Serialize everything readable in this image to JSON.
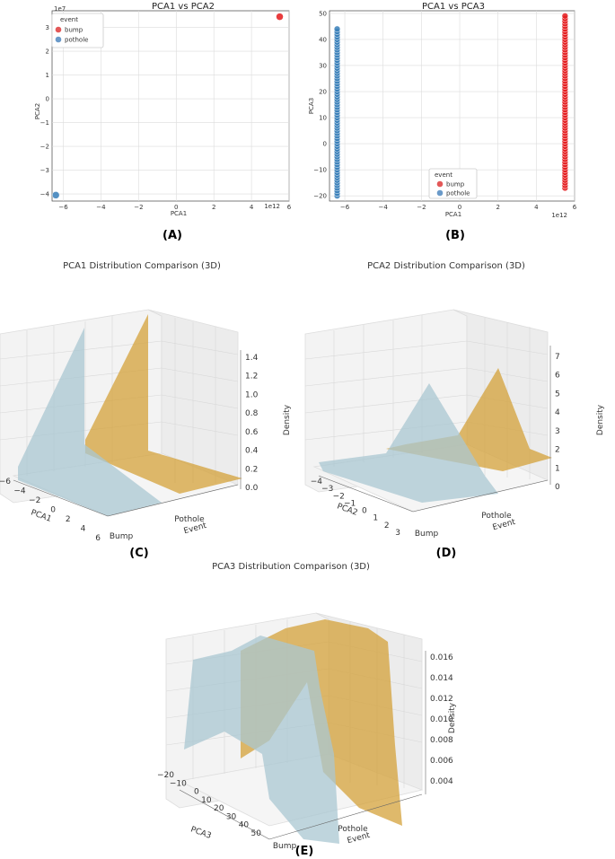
{
  "panels": {
    "A": "(A)",
    "B": "(B)",
    "C": "(C)",
    "D": "(D)",
    "E": "(E)"
  },
  "colors": {
    "bump": "#e41a1c",
    "pothole": "#377eb8",
    "bump3d": "#d4a23a",
    "pothole3d": "#a9c7d2"
  },
  "chart_data": [
    {
      "type": "scatter",
      "title": "PCA1 vs PCA2",
      "xlabel": "PCA1",
      "ylabel": "PCA2",
      "x_exponent": "1e12",
      "y_exponent": "1e7",
      "xlim": [
        -6.6,
        6.0
      ],
      "ylim": [
        -4.3,
        3.7
      ],
      "xticks": [
        "−6",
        "−4",
        "−2",
        "0",
        "2",
        "4",
        "6"
      ],
      "xtick_vals": [
        -6,
        -4,
        -2,
        0,
        2,
        4,
        6
      ],
      "yticks": [
        "−4",
        "−3",
        "−2",
        "−1",
        "0",
        "1",
        "2",
        "3"
      ],
      "ytick_vals": [
        -4,
        -3,
        -2,
        -1,
        0,
        1,
        2,
        3
      ],
      "grid": true,
      "legend": {
        "title": "event",
        "placement": "top-left",
        "entries": [
          "bump",
          "pothole"
        ]
      },
      "series": [
        {
          "name": "bump",
          "points": [
            [
              5.5,
              3.45
            ]
          ]
        },
        {
          "name": "pothole",
          "points": [
            [
              -6.4,
              -4.05
            ]
          ]
        }
      ]
    },
    {
      "type": "scatter",
      "title": "PCA1 vs PCA3",
      "xlabel": "PCA1",
      "ylabel": "PCA3",
      "x_exponent": "1e12",
      "xlim": [
        -6.8,
        6.0
      ],
      "ylim": [
        -22,
        51
      ],
      "xticks": [
        "−6",
        "−4",
        "−2",
        "0",
        "2",
        "4",
        "6"
      ],
      "xtick_vals": [
        -6,
        -4,
        -2,
        0,
        2,
        4,
        6
      ],
      "yticks": [
        "−20",
        "−10",
        "0",
        "10",
        "20",
        "30",
        "40",
        "50"
      ],
      "ytick_vals": [
        -20,
        -10,
        0,
        10,
        20,
        30,
        40,
        50
      ],
      "grid": true,
      "legend": {
        "title": "event",
        "placement": "lower-center",
        "entries": [
          "bump",
          "pothole"
        ]
      },
      "series": [
        {
          "name": "bump",
          "x": 5.5,
          "y_range": [
            -17,
            49
          ],
          "step": 1
        },
        {
          "name": "pothole",
          "x": -6.4,
          "y_range": [
            -20,
            44
          ],
          "step": 1
        }
      ]
    },
    {
      "type": "area",
      "title": "PCA1 Distribution Comparison (3D)",
      "xlabel": "PCA1",
      "ylabel": "Event",
      "zlabel": "Density",
      "xticks": [
        "−6",
        "−4",
        "−2",
        "0",
        "2",
        "4",
        "6"
      ],
      "categories": [
        "Bump",
        "Pothole"
      ],
      "zticks": [
        "0.0",
        "0.2",
        "0.4",
        "0.6",
        "0.8",
        "1.0",
        "1.2",
        "1.4"
      ]
    },
    {
      "type": "area",
      "title": "PCA2 Distribution Comparison (3D)",
      "xlabel": "PCA2",
      "ylabel": "Event",
      "zlabel": "Density",
      "xticks": [
        "−4",
        "−3",
        "−2",
        "−1",
        "0",
        "1",
        "2",
        "3"
      ],
      "categories": [
        "Bump",
        "Pothole"
      ],
      "zticks": [
        "0",
        "1",
        "2",
        "3",
        "4",
        "5",
        "6",
        "7"
      ]
    },
    {
      "type": "area",
      "title": "PCA3 Distribution Comparison (3D)",
      "xlabel": "PCA3",
      "ylabel": "Event",
      "zlabel": "Density",
      "xticks": [
        "−20",
        "−10",
        "0",
        "10",
        "20",
        "30",
        "40",
        "50"
      ],
      "categories": [
        "Bump",
        "Pothole"
      ],
      "zticks": [
        "0.004",
        "0.006",
        "0.008",
        "0.010",
        "0.012",
        "0.014",
        "0.016"
      ]
    }
  ]
}
